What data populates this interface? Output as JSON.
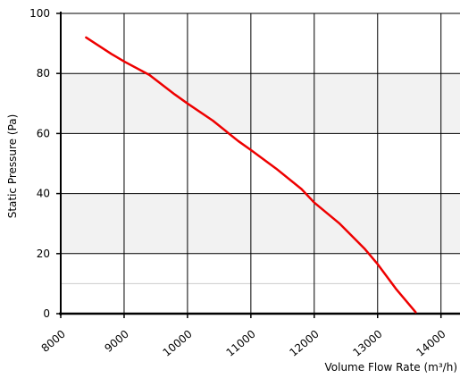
{
  "chart_data": {
    "type": "line",
    "title": "",
    "xlabel": "Volume Flow Rate (m³/h)",
    "ylabel": "Static Pressure (Pa)",
    "xlim": [
      8000,
      14300
    ],
    "ylim": [
      0,
      100
    ],
    "x_ticks": [
      8000,
      9000,
      10000,
      11000,
      12000,
      13000,
      14000
    ],
    "x_tick_labels": [
      "8000",
      "9000",
      "10000",
      "11000",
      "12000",
      "13000",
      "14000"
    ],
    "y_ticks": [
      0,
      20,
      40,
      60,
      80,
      100
    ],
    "y_tick_labels": [
      "0",
      "20",
      "40",
      "60",
      "80",
      "100"
    ],
    "grid": true,
    "alternating_band_color": "#f2f2f2",
    "series": [
      {
        "color": "#ee0000",
        "x": [
          8400,
          8800,
          9000,
          9400,
          9800,
          10000,
          10400,
          10800,
          11000,
          11400,
          11800,
          12000,
          12400,
          12800,
          13000,
          13300,
          13600
        ],
        "y": [
          92,
          86.5,
          84,
          79.5,
          73,
          70,
          64.3,
          57.5,
          54.5,
          48.3,
          41.5,
          37,
          30,
          21.5,
          16.5,
          8,
          0.5
        ]
      }
    ]
  }
}
